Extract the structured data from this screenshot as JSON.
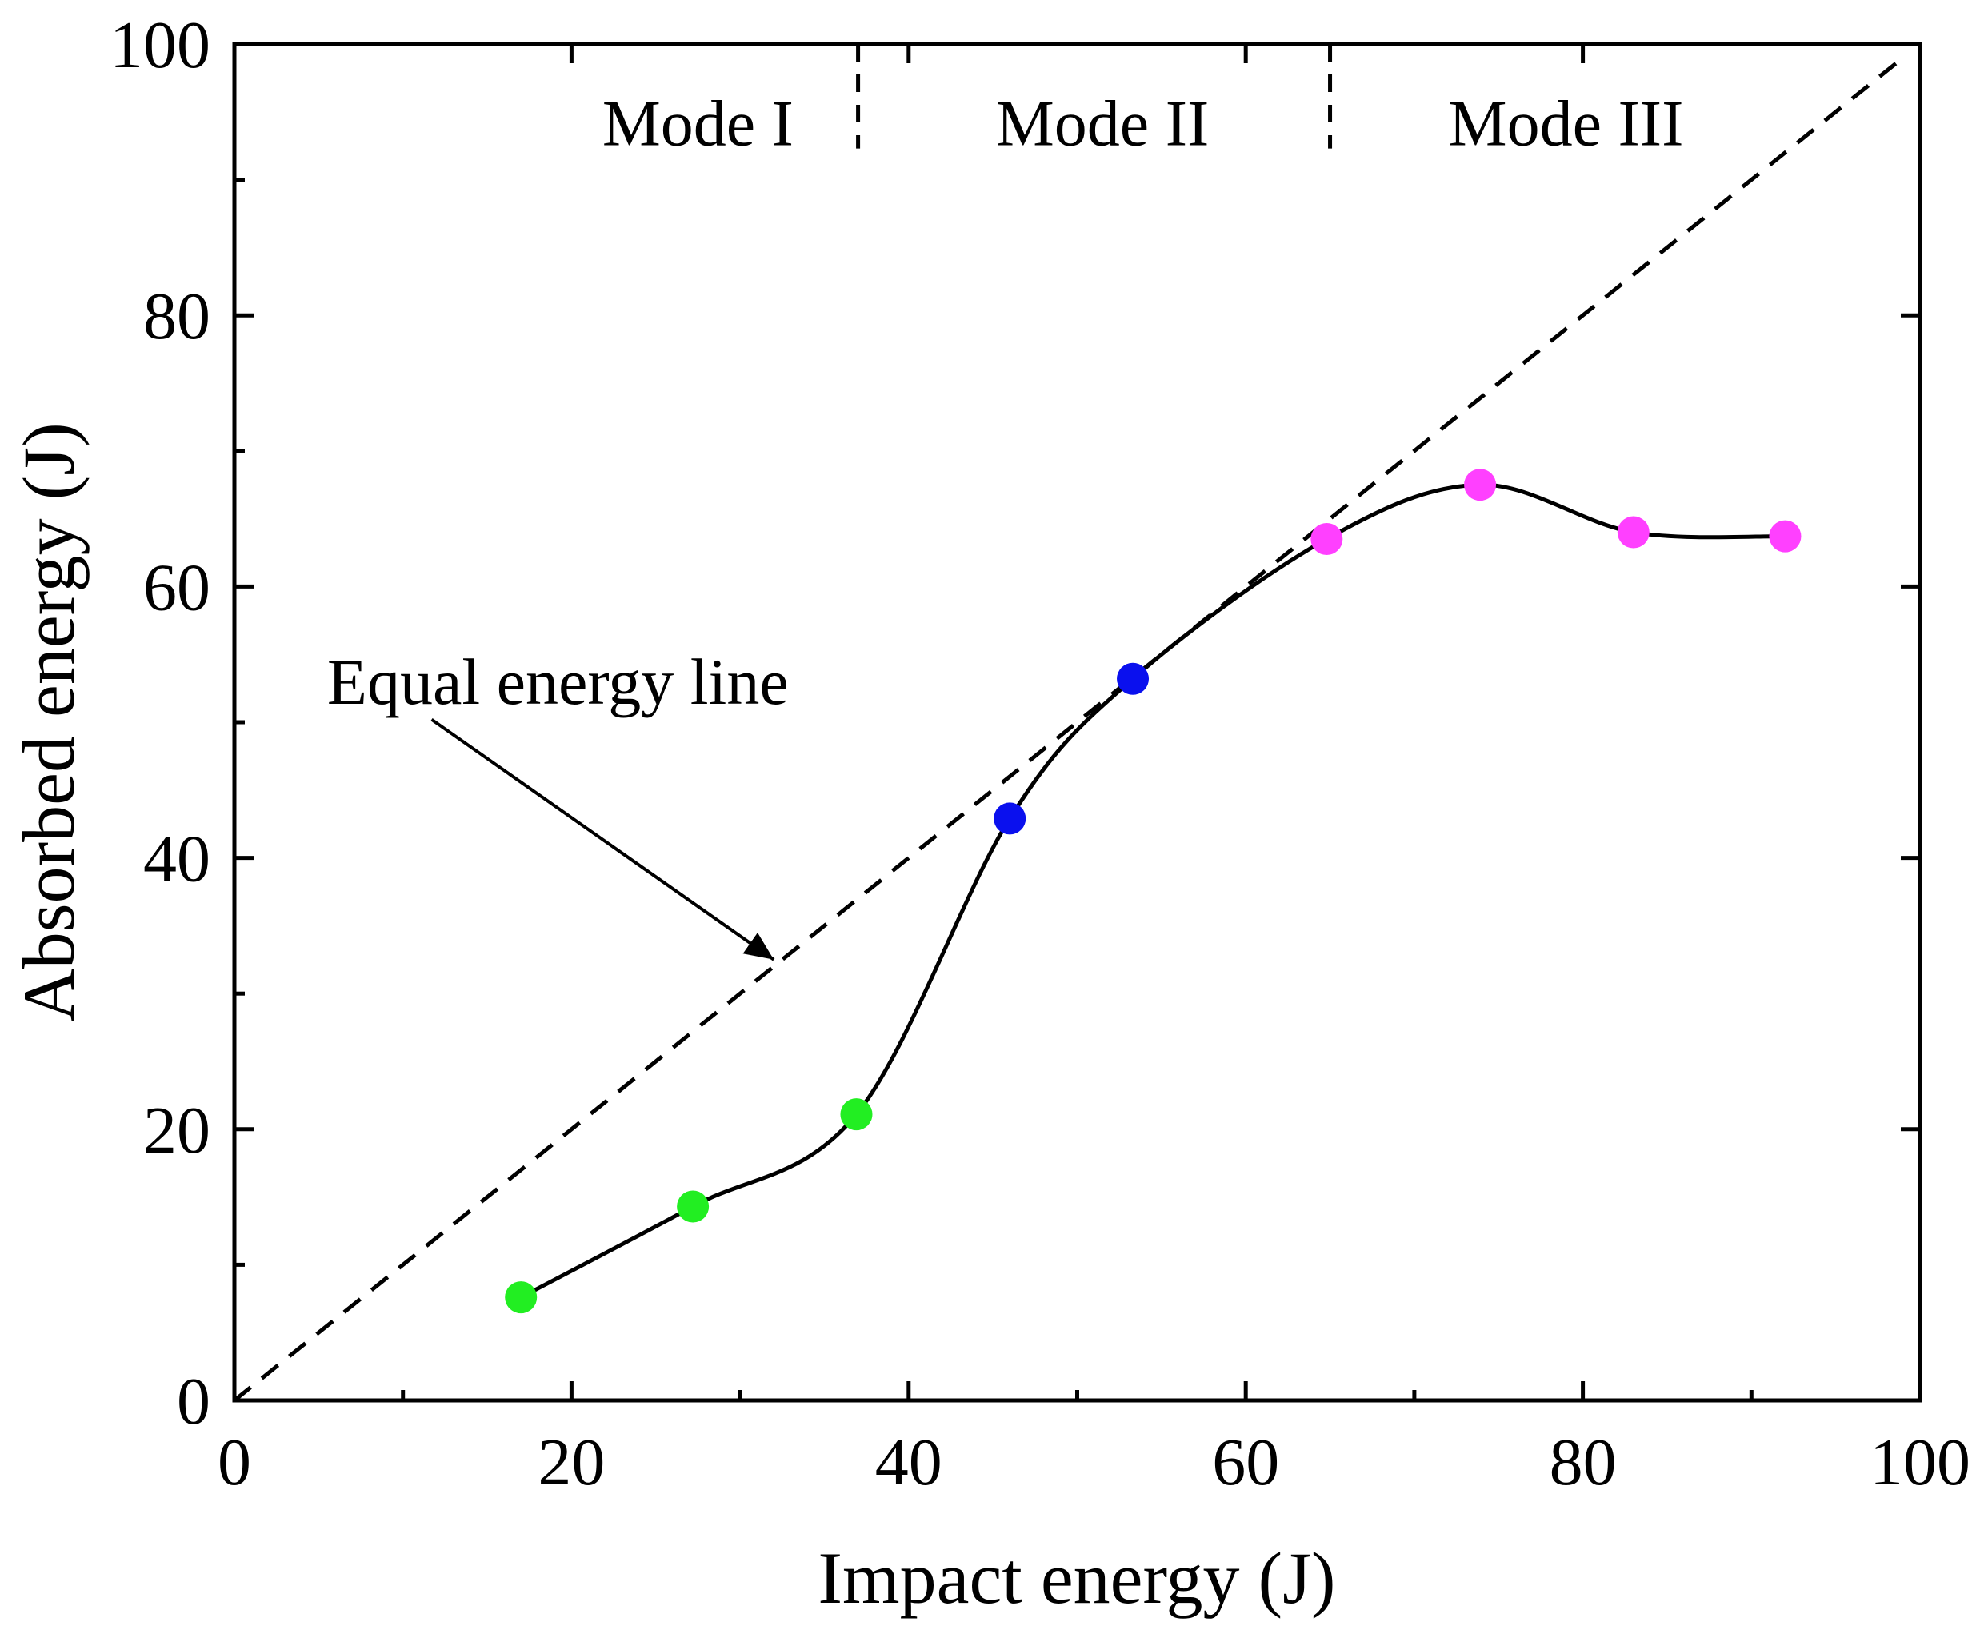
{
  "chart_data": {
    "type": "line",
    "title": "",
    "xlabel": "Impact energy (J)",
    "ylabel": "Absorbed energy (J)",
    "xlim": [
      0,
      100
    ],
    "ylim": [
      0,
      100
    ],
    "xticks": [
      0,
      20,
      40,
      60,
      80,
      100
    ],
    "yticks": [
      0,
      20,
      40,
      60,
      80,
      100
    ],
    "xtick_labels": [
      "0",
      "20",
      "40",
      "60",
      "80",
      "100"
    ],
    "ytick_labels": [
      "0",
      "20",
      "40",
      "60",
      "80",
      "100"
    ],
    "minor_tick_step": 10,
    "grid": false,
    "series": [
      {
        "name": "Absorbed energy",
        "x": [
          17,
          27.2,
          36.9,
          46,
          53.3,
          64.8,
          73.9,
          83,
          92
        ],
        "y": [
          7.6,
          14.3,
          21.1,
          42.9,
          53.2,
          63.5,
          67.5,
          64.0,
          63.7
        ],
        "point_colors": [
          "#22ee22",
          "#22ee22",
          "#22ee22",
          "#0a10ee",
          "#0a10ee",
          "#ff40ff",
          "#ff40ff",
          "#ff40ff",
          "#ff40ff"
        ],
        "line_color": "#000000"
      }
    ],
    "reference_line": {
      "name": "Equal energy line",
      "x": [
        0,
        99
      ],
      "y": [
        0,
        99
      ],
      "style": "dashed",
      "color": "#000000"
    },
    "mode_boundaries": [
      37,
      65
    ],
    "modes": [
      {
        "label": "Mode I",
        "x_center": 27.5
      },
      {
        "label": "Mode II",
        "x_center": 51.5
      },
      {
        "label": "Mode III",
        "x_center": 79
      }
    ],
    "annotations": [
      {
        "text": "Equal energy line",
        "text_x": 5.5,
        "text_y": 53,
        "arrow_to_x": 32,
        "arrow_to_y": 32.5
      }
    ]
  }
}
